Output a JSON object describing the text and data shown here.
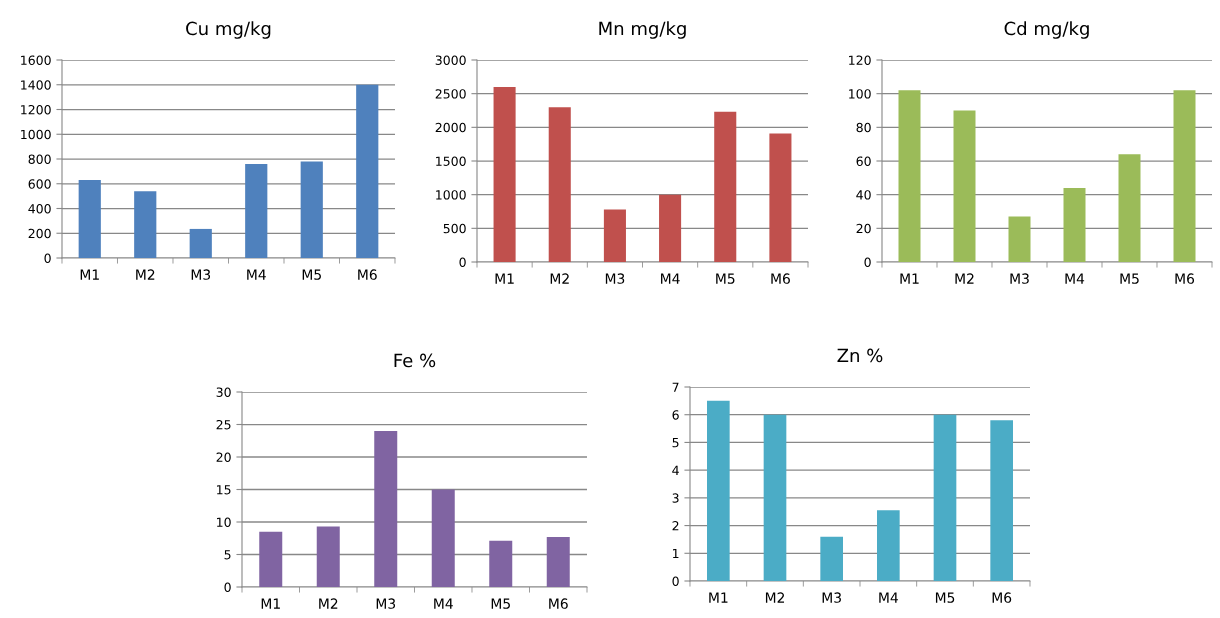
{
  "chart_data": [
    {
      "type": "bar",
      "title": "Cu mg/kg",
      "categories": [
        "M1",
        "M2",
        "M3",
        "M4",
        "M5",
        "M6"
      ],
      "values": [
        630,
        540,
        235,
        760,
        780,
        1400
      ],
      "color": "#4f81bd",
      "ylim": [
        0,
        1600
      ],
      "yticks": [
        0,
        200,
        400,
        600,
        800,
        1000,
        1200,
        1400,
        1600
      ],
      "grid": "y",
      "legend": false
    },
    {
      "type": "bar",
      "title": "Mn mg/kg",
      "categories": [
        "M1",
        "M2",
        "M3",
        "M4",
        "M5",
        "M6"
      ],
      "values": [
        2600,
        2300,
        780,
        1000,
        2230,
        1910
      ],
      "color": "#c0504d",
      "ylim": [
        0,
        3000
      ],
      "yticks": [
        0,
        500,
        1000,
        1500,
        2000,
        2500,
        3000
      ],
      "grid": "y",
      "legend": false
    },
    {
      "type": "bar",
      "title": "Cd mg/kg",
      "categories": [
        "M1",
        "M2",
        "M3",
        "M4",
        "M5",
        "M6"
      ],
      "values": [
        102,
        90,
        27,
        44,
        64,
        102
      ],
      "color": "#9bbb59",
      "ylim": [
        0,
        120
      ],
      "yticks": [
        0,
        20,
        40,
        60,
        80,
        100,
        120
      ],
      "grid": "y",
      "legend": false
    },
    {
      "type": "bar",
      "title": "Fe %",
      "categories": [
        "M1",
        "M2",
        "M3",
        "M4",
        "M5",
        "M6"
      ],
      "values": [
        8.5,
        9.3,
        24,
        15,
        7.1,
        7.7
      ],
      "color": "#8064a2",
      "ylim": [
        0,
        30
      ],
      "yticks": [
        0,
        5,
        10,
        15,
        20,
        25,
        30
      ],
      "grid": "y",
      "legend": false
    },
    {
      "type": "bar",
      "title": "Zn %",
      "categories": [
        "M1",
        "M2",
        "M3",
        "M4",
        "M5",
        "M6"
      ],
      "values": [
        6.5,
        6.0,
        1.6,
        2.55,
        6.0,
        5.8
      ],
      "color": "#4bacc6",
      "ylim": [
        0,
        7
      ],
      "yticks": [
        0,
        1,
        2,
        3,
        4,
        5,
        6,
        7
      ],
      "grid": "y",
      "legend": false
    }
  ]
}
